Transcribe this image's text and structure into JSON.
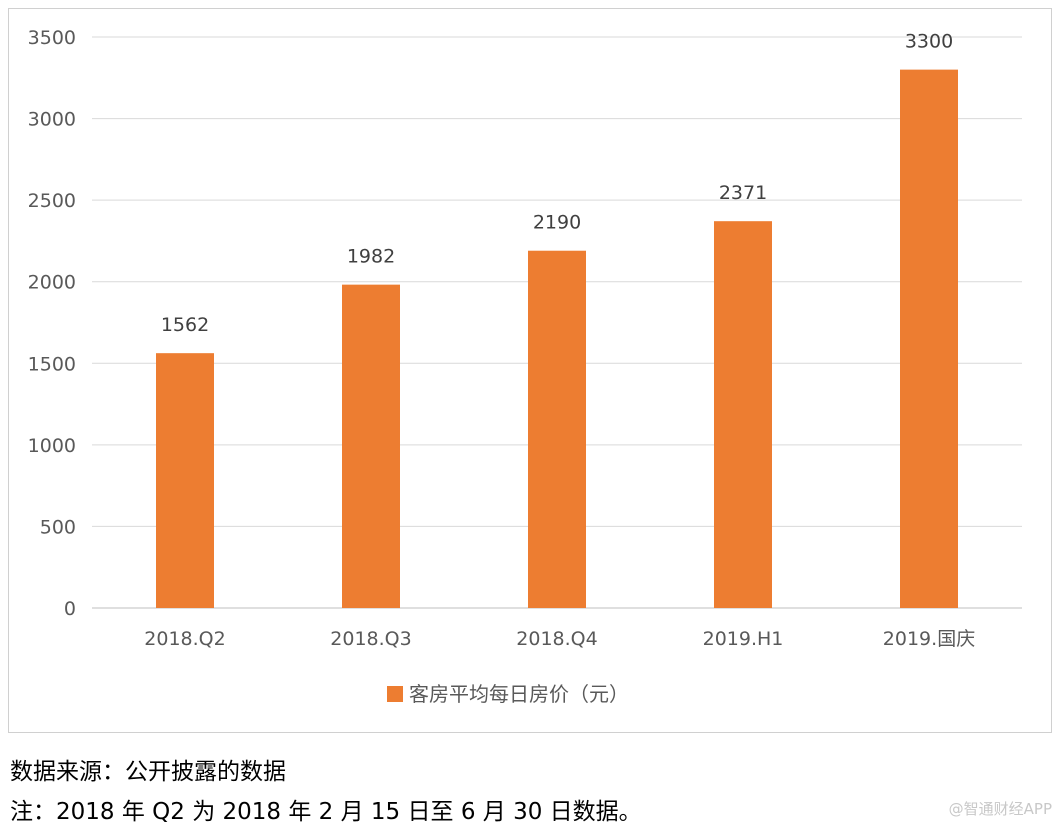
{
  "chart_data": {
    "type": "bar",
    "categories": [
      "2018.Q2",
      "2018.Q3",
      "2018.Q4",
      "2019.H1",
      "2019.国庆"
    ],
    "series": [
      {
        "name": "客房平均每日房价（元）",
        "values": [
          1562,
          1982,
          2190,
          2371,
          3300
        ]
      }
    ],
    "ylim": [
      0,
      3500
    ],
    "yticks": [
      0,
      500,
      1000,
      1500,
      2000,
      2500,
      3000,
      3500
    ],
    "grid": true,
    "legend_position": "bottom",
    "bar_color": "#ed7d31",
    "title": "",
    "xlabel": "",
    "ylabel": ""
  },
  "notes": {
    "source": "数据来源：公开披露的数据",
    "footnote": "注：2018 年 Q2 为 2018 年 2 月 15 日至 6 月 30 日数据。"
  },
  "watermark": "@智通财经APP"
}
